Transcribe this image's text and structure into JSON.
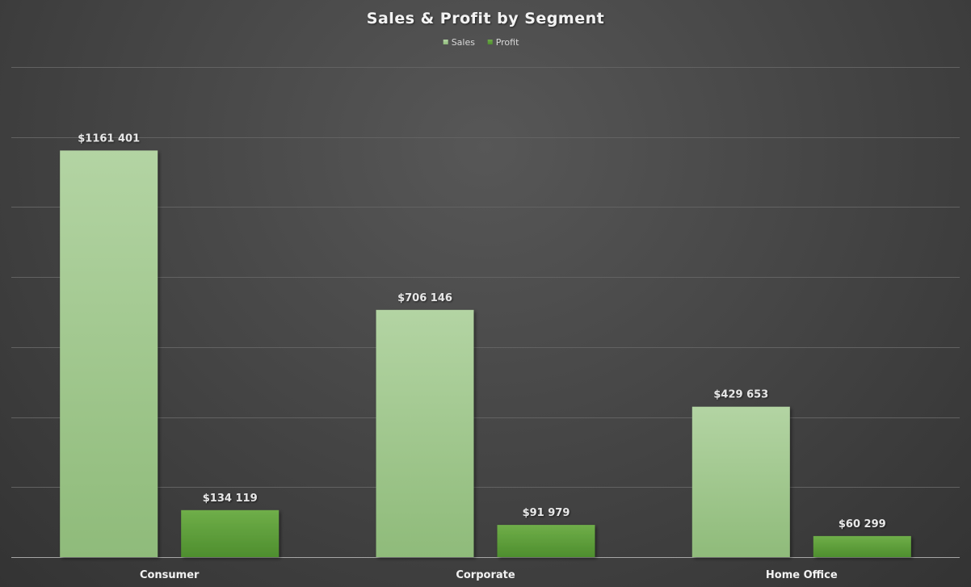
{
  "colors": {
    "sales_top": "#b3d4a3",
    "sales_bottom": "#8fbb7a",
    "profit_top": "#6fae49",
    "profit_bottom": "#4e8e2e"
  },
  "chart_data": {
    "type": "bar",
    "title": "Sales & Profit by Segment",
    "xlabel": "",
    "ylabel": "",
    "categories": [
      "Consumer",
      "Corporate",
      "Home Office"
    ],
    "series": [
      {
        "name": "Sales",
        "values": [
          1161401,
          706146,
          429653
        ],
        "labels": [
          "$1161 401",
          "$706 146",
          "$429 653"
        ]
      },
      {
        "name": "Profit",
        "values": [
          134119,
          91979,
          60299
        ],
        "labels": [
          "$134 119",
          "$91 979",
          "$60 299"
        ]
      }
    ],
    "ylim": [
      0,
      1400000
    ],
    "grid": true,
    "legend": "top-center"
  }
}
